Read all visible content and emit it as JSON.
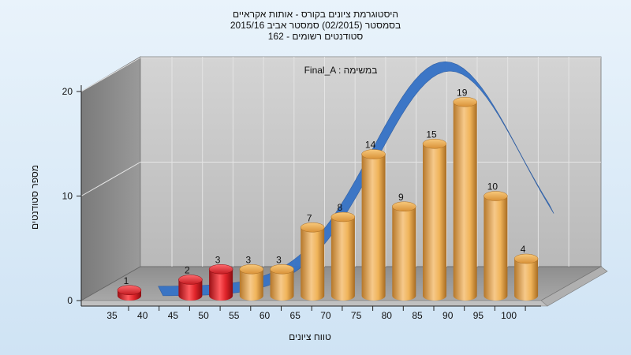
{
  "chart_data": {
    "type": "bar",
    "title_lines": [
      "היסטוגרמת ציונים בקורס - אותות אקראיים",
      "בסמסטר  (02/2015)  סמסטר אביב 2015/16",
      "162 - סטודנטים רשומים"
    ],
    "annotation": "Final_A : במשימה",
    "xlabel": "טווח ציונים",
    "ylabel": "מספר סטודנטים",
    "x_ticks": [
      "35",
      "40",
      "45",
      "50",
      "55",
      "60",
      "65",
      "70",
      "75",
      "80",
      "85",
      "90",
      "95",
      "100"
    ],
    "y_ticks": [
      "0",
      "10",
      "20"
    ],
    "ylim": [
      0,
      20
    ],
    "categories": [
      "35",
      "45",
      "50",
      "55",
      "60",
      "65",
      "70",
      "75",
      "80",
      "85",
      "90",
      "95",
      "100"
    ],
    "values": [
      1,
      2,
      3,
      3,
      3,
      7,
      8,
      14,
      9,
      15,
      19,
      10,
      4
    ],
    "bar_colors": [
      "red",
      "red",
      "red",
      "gold",
      "gold",
      "gold",
      "gold",
      "gold",
      "gold",
      "gold",
      "gold",
      "gold",
      "gold"
    ],
    "colors": {
      "red_bar": "#e0242a",
      "gold_bar": "#f0b45a",
      "curve": "#3572c6",
      "back_wall": "#c4c4c4",
      "side_wall": "#8c8c8c",
      "floor": "#9a9a9a"
    },
    "grid": true
  }
}
